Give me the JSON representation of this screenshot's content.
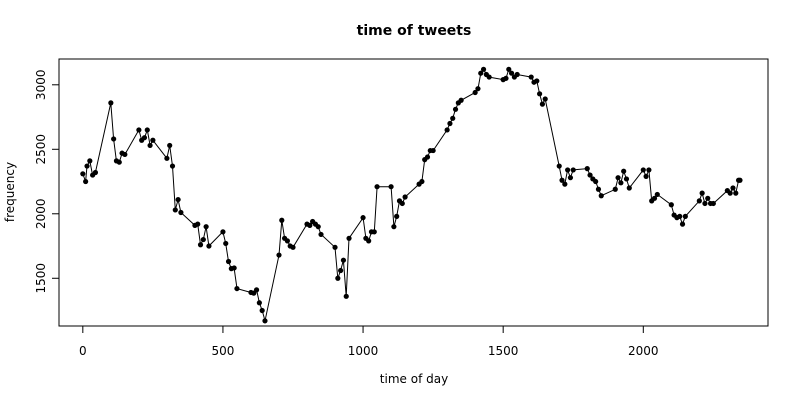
{
  "chart_data": {
    "type": "line",
    "title": "time of tweets",
    "xlabel": "time of day",
    "ylabel": "frequency",
    "xlim": [
      -85,
      2445
    ],
    "ylim": [
      1130,
      3200
    ],
    "x_ticks": [
      0,
      500,
      1000,
      1500,
      2000
    ],
    "y_ticks": [
      1500,
      2000,
      2500,
      3000
    ],
    "grid": false,
    "series": [
      {
        "x": [
          0,
          10,
          15,
          25,
          35,
          45,
          100,
          110,
          120,
          130,
          140,
          150,
          200,
          210,
          220,
          230,
          240,
          250,
          300,
          310,
          320,
          330,
          340,
          350,
          400,
          410,
          420,
          430,
          440,
          450,
          500,
          510,
          520,
          530,
          540,
          550,
          600,
          610,
          620,
          630,
          640,
          650,
          700,
          710,
          720,
          730,
          740,
          750,
          800,
          810,
          820,
          830,
          840,
          850,
          900,
          910,
          920,
          930,
          940,
          950,
          1000,
          1010,
          1020,
          1030,
          1040,
          1050,
          1100,
          1110,
          1120,
          1130,
          1140,
          1150,
          1200,
          1210,
          1220,
          1230,
          1240,
          1250,
          1300,
          1310,
          1320,
          1330,
          1340,
          1350,
          1400,
          1410,
          1420,
          1430,
          1440,
          1450,
          1500,
          1510,
          1520,
          1530,
          1540,
          1550,
          1600,
          1610,
          1620,
          1630,
          1640,
          1650,
          1700,
          1710,
          1720,
          1730,
          1740,
          1750,
          1800,
          1810,
          1820,
          1830,
          1840,
          1850,
          1900,
          1910,
          1920,
          1930,
          1940,
          1950,
          2000,
          2010,
          2020,
          2030,
          2040,
          2050,
          2100,
          2110,
          2120,
          2130,
          2140,
          2150,
          2200,
          2210,
          2220,
          2230,
          2240,
          2250,
          2300,
          2310,
          2320,
          2330,
          2340,
          2345
        ],
        "y": [
          2310,
          2250,
          2370,
          2410,
          2300,
          2320,
          2860,
          2580,
          2410,
          2400,
          2470,
          2460,
          2650,
          2570,
          2590,
          2650,
          2530,
          2570,
          2430,
          2530,
          2370,
          2030,
          2110,
          2010,
          1910,
          1920,
          1760,
          1800,
          1900,
          1750,
          1860,
          1770,
          1630,
          1575,
          1580,
          1420,
          1390,
          1385,
          1410,
          1310,
          1250,
          1170,
          1680,
          1950,
          1810,
          1790,
          1750,
          1740,
          1920,
          1910,
          1940,
          1920,
          1900,
          1840,
          1740,
          1500,
          1560,
          1640,
          1360,
          1810,
          1970,
          1810,
          1790,
          1860,
          1860,
          2210,
          2210,
          1900,
          1980,
          2100,
          2080,
          2130,
          2230,
          2250,
          2420,
          2440,
          2490,
          2490,
          2650,
          2700,
          2740,
          2810,
          2860,
          2880,
          2940,
          2970,
          3090,
          3120,
          3080,
          3060,
          3040,
          3050,
          3120,
          3090,
          3060,
          3080,
          3060,
          3020,
          3030,
          2930,
          2850,
          2890,
          2370,
          2260,
          2230,
          2340,
          2280,
          2340,
          2350,
          2300,
          2270,
          2250,
          2190,
          2140,
          2190,
          2280,
          2240,
          2330,
          2270,
          2200,
          2340,
          2290,
          2340,
          2100,
          2120,
          2150,
          2070,
          1990,
          1970,
          1980,
          1920,
          1980,
          2100,
          2160,
          2080,
          2120,
          2080,
          2080,
          2180,
          2160,
          2200,
          2160,
          2260,
          2260
        ]
      }
    ]
  }
}
